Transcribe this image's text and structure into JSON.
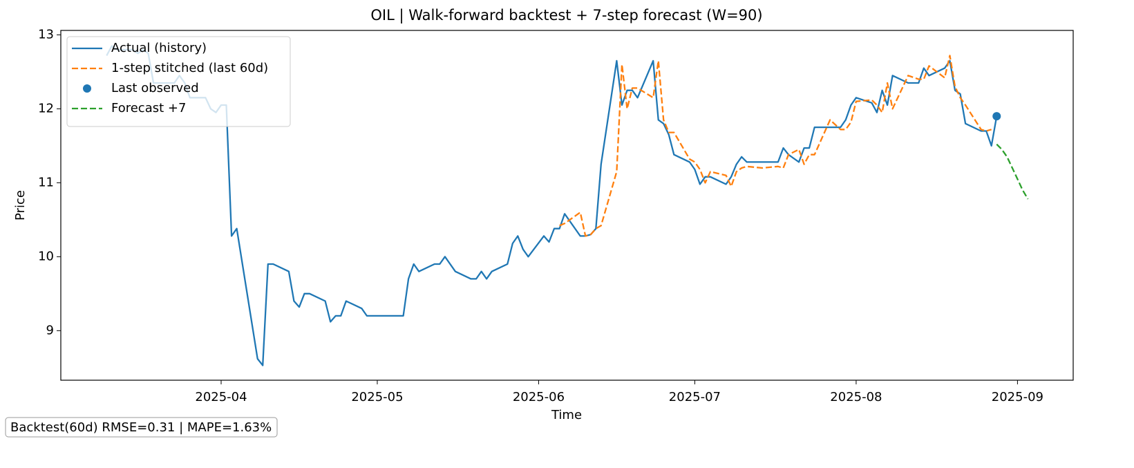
{
  "chart_data": {
    "type": "line",
    "title": "OIL | Walk-forward backtest + 7-step forecast (W=90)",
    "xlabel": "Time",
    "ylabel": "Price",
    "annotation": "Backtest(60d)  RMSE=0.31 | MAPE=1.63%",
    "xlim": [
      60.2,
      254.7
    ],
    "xticks": [
      {
        "value": 91,
        "label": "2025-04"
      },
      {
        "value": 121,
        "label": "2025-05"
      },
      {
        "value": 152,
        "label": "2025-06"
      },
      {
        "value": 182,
        "label": "2025-07"
      },
      {
        "value": 213,
        "label": "2025-08"
      },
      {
        "value": 244,
        "label": "2025-09"
      }
    ],
    "ylim": [
      8.33,
      13.06
    ],
    "yticks": [
      9,
      10,
      11,
      12,
      13
    ],
    "grid": false,
    "legend": "upper left",
    "series": [
      {
        "name": "Actual (history)",
        "color": "#1f77b4",
        "style": "solid",
        "x": [
          69,
          70,
          71,
          74,
          75,
          76,
          77,
          78,
          81,
          82,
          83,
          84,
          85,
          88,
          89,
          90,
          91,
          92,
          93,
          94,
          98,
          99,
          100,
          101,
          104,
          105,
          106,
          107,
          108,
          111,
          112,
          113,
          114,
          115,
          118,
          119,
          126,
          127,
          128,
          129,
          132,
          133,
          134,
          136,
          139,
          140,
          141,
          142,
          143,
          146,
          147,
          148,
          149,
          150,
          153,
          154,
          155,
          156,
          157,
          160,
          161,
          162,
          163,
          164,
          167,
          168,
          169,
          170,
          171,
          174,
          175,
          176,
          177,
          178,
          181,
          182,
          183,
          184,
          185,
          188,
          189,
          190,
          191,
          192,
          195,
          198,
          199,
          200,
          202,
          203,
          204,
          205,
          208,
          210,
          211,
          212,
          213,
          216,
          217,
          218,
          219,
          220,
          223,
          225,
          226,
          227,
          230,
          231,
          232,
          233,
          234,
          237,
          238,
          239,
          240
        ],
        "values": [
          12.72,
          12.85,
          12.8,
          12.8,
          12.75,
          12.8,
          12.75,
          12.35,
          12.35,
          12.35,
          12.45,
          12.35,
          12.15,
          12.15,
          12.0,
          11.95,
          12.05,
          12.05,
          10.28,
          10.38,
          8.62,
          8.53,
          9.9,
          9.9,
          9.8,
          9.4,
          9.32,
          9.5,
          9.5,
          9.4,
          9.12,
          9.2,
          9.2,
          9.4,
          9.3,
          9.2,
          9.2,
          9.7,
          9.9,
          9.8,
          9.9,
          9.9,
          10.0,
          9.8,
          9.7,
          9.7,
          9.8,
          9.7,
          9.8,
          9.9,
          10.18,
          10.28,
          10.1,
          10.0,
          10.28,
          10.2,
          10.38,
          10.38,
          10.58,
          10.28,
          10.28,
          10.3,
          10.38,
          11.25,
          12.65,
          12.05,
          12.25,
          12.25,
          12.15,
          12.65,
          11.85,
          11.8,
          11.65,
          11.38,
          11.28,
          11.18,
          10.98,
          11.08,
          11.08,
          10.98,
          11.08,
          11.25,
          11.35,
          11.28,
          11.28,
          11.28,
          11.47,
          11.38,
          11.28,
          11.47,
          11.47,
          11.75,
          11.75,
          11.75,
          11.85,
          12.05,
          12.15,
          12.08,
          11.95,
          12.25,
          12.05,
          12.45,
          12.35,
          12.35,
          12.55,
          12.45,
          12.55,
          12.65,
          12.25,
          12.2,
          11.8,
          11.7,
          11.7,
          11.5,
          11.9
        ]
      },
      {
        "name": "1-step stitched (last 60d)",
        "color": "#ff7f0e",
        "style": "dashed",
        "x": [
          156,
          157,
          160,
          161,
          162,
          163,
          164,
          167,
          168,
          169,
          170,
          171,
          174,
          175,
          176,
          177,
          178,
          181,
          182,
          183,
          184,
          185,
          188,
          189,
          190,
          191,
          192,
          195,
          198,
          199,
          200,
          202,
          203,
          204,
          205,
          208,
          210,
          211,
          212,
          213,
          216,
          217,
          218,
          219,
          220,
          223,
          225,
          226,
          227,
          230,
          231,
          232,
          233,
          234,
          237,
          238,
          239
        ],
        "values": [
          10.42,
          10.45,
          10.6,
          10.28,
          10.3,
          10.38,
          10.42,
          11.15,
          12.6,
          12.0,
          12.28,
          12.28,
          12.15,
          12.65,
          11.85,
          11.68,
          11.68,
          11.32,
          11.28,
          11.18,
          11.0,
          11.15,
          11.1,
          10.95,
          11.15,
          11.2,
          11.22,
          11.2,
          11.22,
          11.2,
          11.38,
          11.45,
          11.25,
          11.38,
          11.38,
          11.85,
          11.72,
          11.72,
          11.82,
          12.1,
          12.12,
          12.05,
          11.95,
          12.35,
          12.0,
          12.45,
          12.4,
          12.4,
          12.58,
          12.42,
          12.72,
          12.3,
          12.15,
          12.05,
          11.72,
          11.7,
          11.72
        ]
      },
      {
        "name": "Last observed",
        "color": "#1f77b4",
        "style": "marker",
        "x": [
          240
        ],
        "values": [
          11.9
        ]
      },
      {
        "name": "Forecast +7",
        "color": "#2ca02c",
        "style": "dashed",
        "x": [
          240,
          241,
          242,
          243,
          244,
          245,
          246
        ],
        "values": [
          11.52,
          11.45,
          11.35,
          11.2,
          11.05,
          10.9,
          10.78
        ]
      }
    ]
  }
}
